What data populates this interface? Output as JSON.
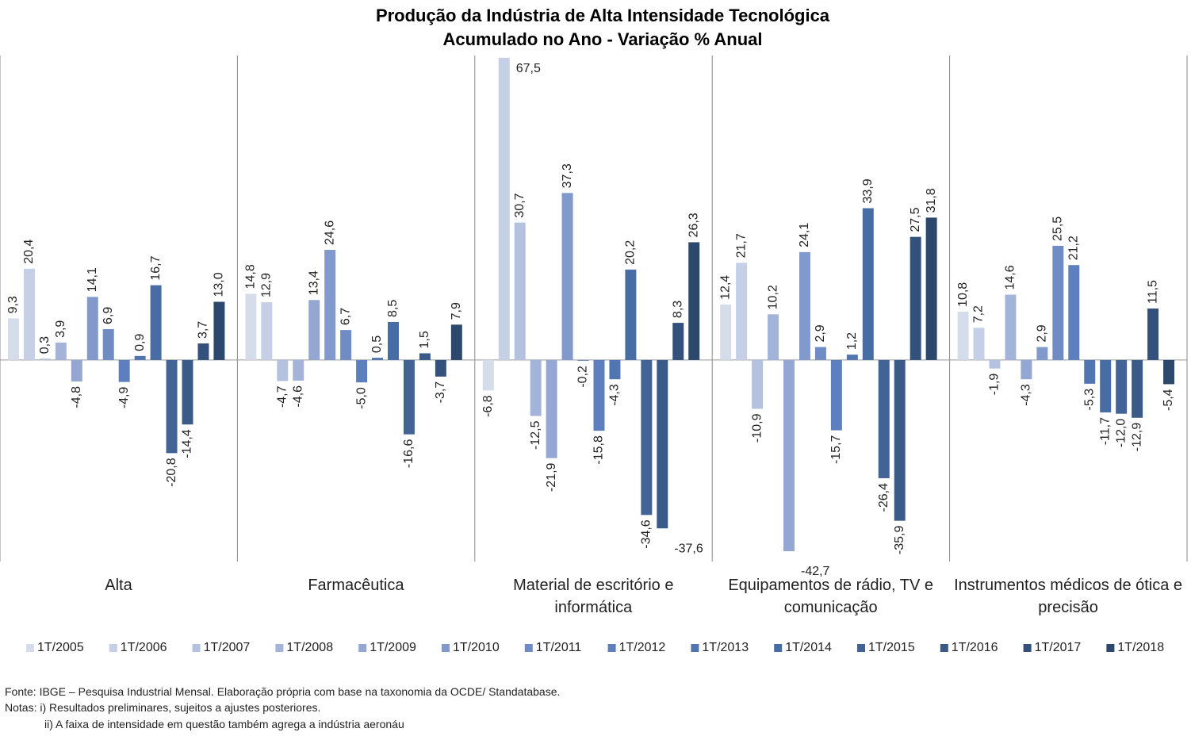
{
  "chart_data": {
    "type": "bar",
    "title": "Produção da Indústria de Alta Intensidade Tecnológica",
    "subtitle": "Acumulado no Ano - Variação % Anual",
    "categories": [
      "Alta",
      "Farmacêutica",
      "Material de escritório e informática",
      "Equipamentos de rádio, TV e comunicação",
      "Instrumentos médicos de ótica e precisão"
    ],
    "ylim": [
      -45,
      68
    ],
    "series": [
      {
        "name": "1T/2005",
        "color": "#d5dcea",
        "values": [
          9.3,
          14.8,
          -6.8,
          12.4,
          10.8
        ],
        "value_labels": [
          "9,3",
          "14,8",
          "-6,8",
          "12,4",
          "10,8"
        ]
      },
      {
        "name": "1T/2006",
        "color": "#c5cfe5",
        "values": [
          20.4,
          12.9,
          67.5,
          21.7,
          7.2
        ],
        "value_labels": [
          "20,4",
          "12,9",
          "67,5",
          "21,7",
          "7,2"
        ]
      },
      {
        "name": "1T/2007",
        "color": "#b4c2df",
        "values": [
          0.3,
          -4.7,
          30.7,
          -10.9,
          -1.9
        ],
        "value_labels": [
          "0,3",
          "-4,7",
          "30,7",
          "-10,9",
          "-1,9"
        ]
      },
      {
        "name": "1T/2008",
        "color": "#a3b4d8",
        "values": [
          3.9,
          -4.6,
          -12.5,
          10.2,
          14.6
        ],
        "value_labels": [
          "3,9",
          "-4,6",
          "-12,5",
          "10,2",
          "14,6"
        ]
      },
      {
        "name": "1T/2009",
        "color": "#93a7d2",
        "values": [
          -4.8,
          13.4,
          -21.9,
          -42.7,
          -4.3
        ],
        "value_labels": [
          "-4,8",
          "13,4",
          "-21,9",
          "-42,7",
          "-4,3"
        ]
      },
      {
        "name": "1T/2010",
        "color": "#8199cb",
        "values": [
          14.1,
          24.6,
          37.3,
          24.1,
          2.9
        ],
        "value_labels": [
          "14,1",
          "24,6",
          "37,3",
          "24,1",
          "2,9"
        ]
      },
      {
        "name": "1T/2011",
        "color": "#6f8cc4",
        "values": [
          6.9,
          6.7,
          -0.2,
          2.9,
          25.5
        ],
        "value_labels": [
          "6,9",
          "6,7",
          "-0,2",
          "2,9",
          "25,5"
        ]
      },
      {
        "name": "1T/2012",
        "color": "#5e7fbd",
        "values": [
          -4.9,
          -5.0,
          -15.8,
          -15.7,
          21.2
        ],
        "value_labels": [
          "-4,9",
          "-5,0",
          "-15,8",
          "-15,7",
          "21,2"
        ]
      },
      {
        "name": "1T/2013",
        "color": "#5175b1",
        "values": [
          0.9,
          0.5,
          -4.3,
          1.2,
          -5.3
        ],
        "value_labels": [
          "0,9",
          "0,5",
          "-4,3",
          "1,2",
          "-5,3"
        ]
      },
      {
        "name": "1T/2014",
        "color": "#486ca4",
        "values": [
          16.7,
          8.5,
          20.2,
          33.9,
          -11.7
        ],
        "value_labels": [
          "16,7",
          "8,5",
          "20,2",
          "33,9",
          "-11,7"
        ]
      },
      {
        "name": "1T/2015",
        "color": "#416395",
        "values": [
          -20.8,
          -16.6,
          -34.6,
          -26.4,
          -12.0
        ],
        "value_labels": [
          "-20,8",
          "-16,6",
          "-34,6",
          "-26,4",
          "-12,0"
        ]
      },
      {
        "name": "1T/2016",
        "color": "#3a5a88",
        "values": [
          -14.4,
          1.5,
          -37.6,
          -35.9,
          -12.9
        ],
        "value_labels": [
          "-14,4",
          "1,5",
          "-37,6",
          "-35,9",
          "-12,9"
        ]
      },
      {
        "name": "1T/2017",
        "color": "#34517b",
        "values": [
          3.7,
          -3.7,
          8.3,
          27.5,
          11.5
        ],
        "value_labels": [
          "3,7",
          "-3,7",
          "8,3",
          "27,5",
          "11,5"
        ]
      },
      {
        "name": "1T/2018",
        "color": "#2d486d",
        "values": [
          13.0,
          7.9,
          26.3,
          31.8,
          -5.4
        ],
        "value_labels": [
          "13,0",
          "7,9",
          "26,3",
          "31,8",
          "-5,4"
        ]
      }
    ],
    "source": "Fonte: IBGE – Pesquisa Industrial Mensal. Elaboração própria com base na taxonomia da OCDE/ Standatabase.",
    "notes": [
      "Notas: i) Resultados preliminares, sujeitos a ajustes posteriores.",
      "ii) A faixa de intensidade em questão também agrega a indústria aeronáu"
    ]
  }
}
